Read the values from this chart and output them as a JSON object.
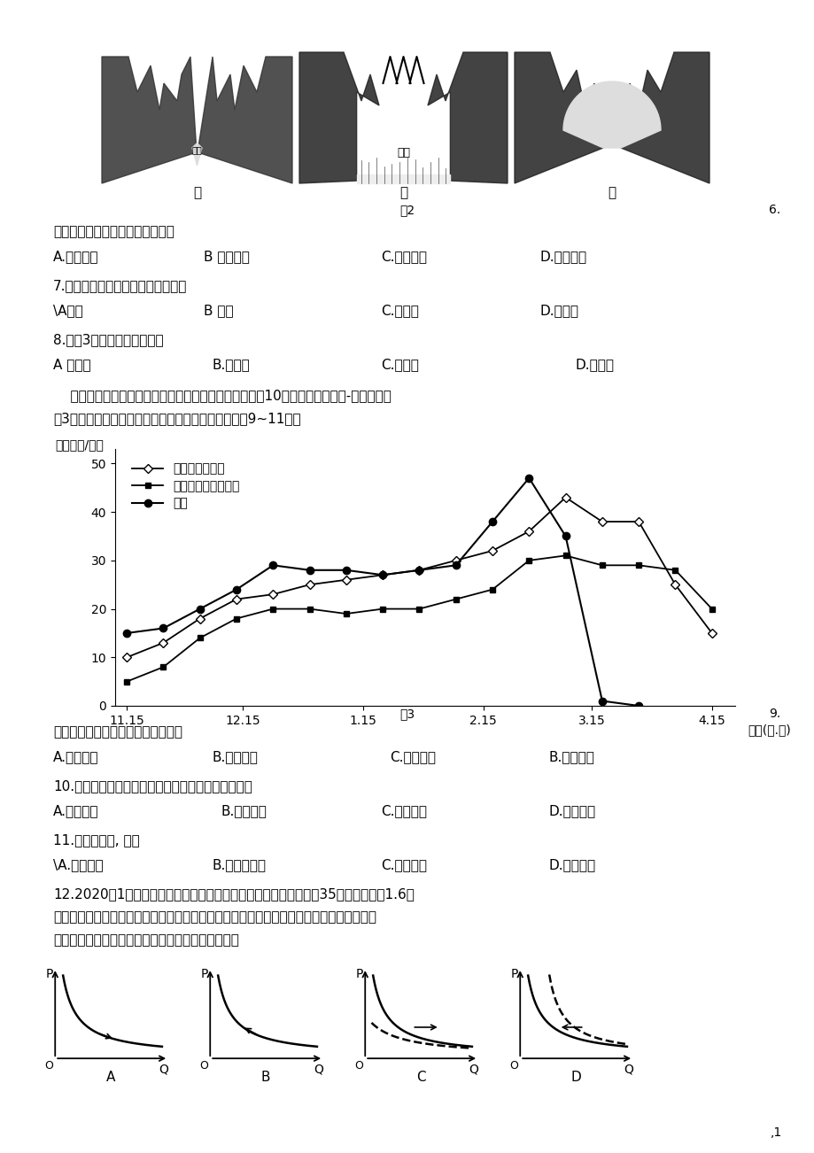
{
  "page_bg": "#ffffff",
  "fig2_label": "图2",
  "fig3_caption": "图3",
  "q6_text": "丙图中谷地形成的主要外力作用是",
  "q6_options": [
    "A.流水侵蚀",
    "B 冰川侵蚀",
    "C.风力侵蚀",
    "D.海浪侵蚀"
  ],
  "q7_text": "7.图示地区还容易形成的地理事物是",
  "q7_options": [
    "\\A峡湾",
    "B 溶洞",
    "C.冲积扇",
    "D.蘑菇石"
  ],
  "q8_text": "8.图示3个时期的先后顺序是",
  "q8_options": [
    "A 申乙丙",
    "B.甲丙乙",
    "C.乙甲丙",
    "D.乙丙甲"
  ],
  "passage_line1": "    某年我国某科研队在某实验区选择三种地面，观测了近10场降雪的地面积雪-融雪过程，",
  "passage_line2": "图3为种地面积雪厚度随时间变化的状况图。据此完成9~11题。",
  "ylabel": "积雪厚度/厘米",
  "xlabel": "日期(月.日)",
  "xtick_labels": [
    "11.15",
    "12.15",
    "1.15",
    "2.15",
    "3.15",
    "4.15"
  ],
  "series_luoyesong_x": [
    0,
    1,
    2,
    3,
    4,
    5,
    6,
    7,
    8,
    9,
    10,
    11,
    12,
    13,
    14,
    15,
    16
  ],
  "series_luoyesong_y": [
    10,
    13,
    18,
    22,
    23,
    25,
    26,
    27,
    28,
    30,
    32,
    36,
    43,
    38,
    38,
    25,
    15
  ],
  "series_zhangsong_x": [
    0,
    1,
    2,
    3,
    4,
    5,
    6,
    7,
    8,
    9,
    10,
    11,
    12,
    13,
    14,
    15,
    16
  ],
  "series_zhangsong_y": [
    5,
    8,
    14,
    18,
    20,
    20,
    19,
    20,
    20,
    22,
    24,
    30,
    31,
    29,
    29,
    28,
    20
  ],
  "series_luodi_x": [
    0,
    1,
    2,
    3,
    4,
    5,
    6,
    7,
    8,
    9,
    10,
    11,
    12,
    13,
    14
  ],
  "series_luodi_y": [
    15,
    16,
    20,
    24,
    29,
    28,
    28,
    27,
    28,
    29,
    38,
    47,
    35,
    1,
    0
  ],
  "q9_text": "该试验区最有可能位于我国的地区是",
  "q9_options": [
    "A.华北地区",
    "B.东北地区",
    "C.西南地区",
    "B.西北地区"
  ],
  "q10_text": "10.影响实验区内三种地面积雪深度差异的主要因素是",
  "q10_options": [
    "A.降雪总量",
    "B.山地坡向",
    "C.林冠截留",
    "D.林内风速"
  ],
  "q11_text": "11.与裸地相比, 林地",
  "q11_options": [
    "\\A.降温较快",
    "B.增加融雪量",
    "C.加速融雪",
    "D.延长春汛"
  ],
  "q12_line1": "12.2020年1月，国务院出台文件鼓励有条件的地区对农村居民购买35吨及以下货车1.6升",
  "q12_line2": "及以下排量乘用车给予补贴奖励。这可能引发政策实施地区农村居民对相关车型的需求发生",
  "q12_line3": "变化。不考虑其他因素，正确反映这一变化的图示是",
  "demand_labels": [
    "A",
    "B",
    "C",
    "D"
  ],
  "page_num": ",1",
  "num_6": "6.",
  "num_9": "9."
}
